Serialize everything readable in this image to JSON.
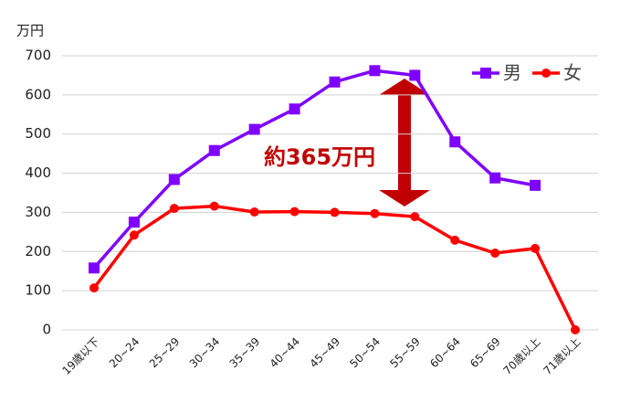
{
  "chart_data": {
    "type": "line",
    "y_label": "万円",
    "categories": [
      "19歳以下",
      "20~24",
      "25~29",
      "30~34",
      "35~39",
      "40~44",
      "45~49",
      "50~54",
      "55~59",
      "60~64",
      "65~69",
      "70歳以上",
      "71歳以上"
    ],
    "series": [
      {
        "name": "男",
        "color": "#7f00ff",
        "marker": "square",
        "values": [
          158,
          275,
          384,
          458,
          512,
          564,
          633,
          662,
          650,
          480,
          388,
          369,
          null
        ]
      },
      {
        "name": "女",
        "color": "#ff0000",
        "marker": "circle",
        "values": [
          107,
          242,
          310,
          316,
          301,
          302,
          300,
          297,
          289,
          229,
          196,
          208,
          0
        ]
      }
    ],
    "ylim": [
      0,
      700
    ],
    "yticks": [
      0,
      100,
      200,
      300,
      400,
      500,
      600,
      700
    ],
    "grid": true,
    "annotation": "約365万円",
    "legend": "top-right"
  }
}
